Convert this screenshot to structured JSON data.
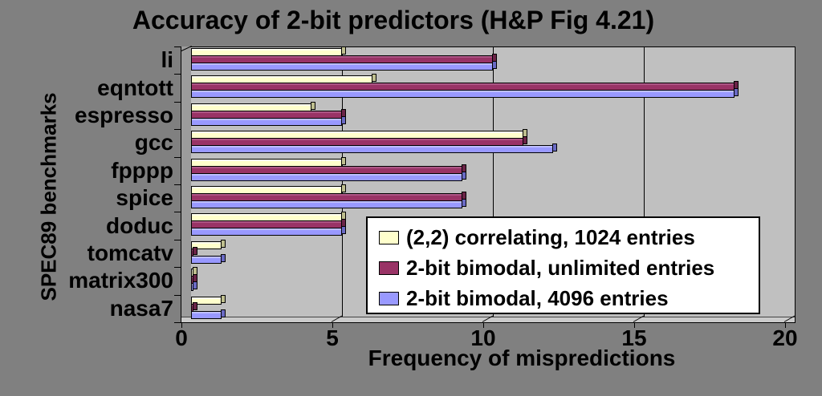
{
  "colors": {
    "background": "#808080",
    "plot_bg": "#C0C0C0",
    "side_wall": "#9C9C9C",
    "floor": "#CBCBCB",
    "legend_bg": "#FFFFFF",
    "axis_line": "#000000",
    "text": "#000000"
  },
  "chart_data": {
    "type": "bar",
    "orientation": "horizontal",
    "style": "3d-excel",
    "title": "Accuracy of 2-bit predictors (H&P Fig 4.21)",
    "xlabel": "Frequency of mispredictions",
    "ylabel": "SPEC89 benchmarks",
    "xlim": [
      0,
      20
    ],
    "xticks": [
      "0",
      "5",
      "10",
      "15",
      "20"
    ],
    "xtick_values": [
      0,
      5,
      10,
      15,
      20
    ],
    "gridline_values": [
      5,
      10,
      15
    ],
    "grid": "vertical-major",
    "legend_position": "inside-bottom-right",
    "categories": [
      "li",
      "eqntott",
      "espresso",
      "gcc",
      "fpppp",
      "spice",
      "doduc",
      "tomcatv",
      "matrix300",
      "nasa7"
    ],
    "series": [
      {
        "name": "(2,2) correlating, 1024 entries",
        "color": "#FFFFCC",
        "top_color": "#FFFFF0",
        "cap_color": "#BFBF8F",
        "values": [
          5,
          6,
          4,
          11,
          5,
          5,
          5,
          1,
          0,
          1
        ]
      },
      {
        "name": "2-bit bimodal, unlimited entries",
        "color": "#993366",
        "top_color": "#AD5585",
        "cap_color": "#6B2447",
        "values": [
          10,
          18,
          5,
          11,
          9,
          9,
          5,
          0,
          0,
          0
        ]
      },
      {
        "name": "2-bit bimodal, 4096 entries",
        "color": "#9999FF",
        "top_color": "#BEBEFF",
        "cap_color": "#6A6AC4",
        "values": [
          10,
          18,
          5,
          12,
          9,
          9,
          5,
          1,
          0,
          1
        ]
      }
    ]
  }
}
